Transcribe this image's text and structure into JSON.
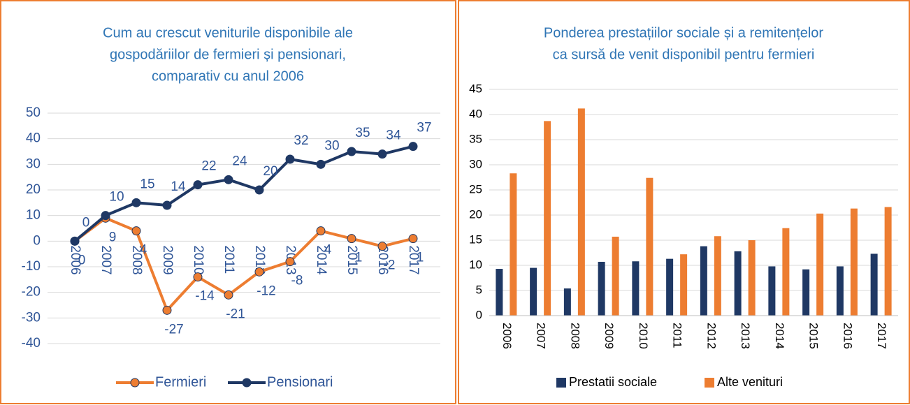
{
  "chart_data": [
    {
      "type": "line",
      "title": [
        "Cum au crescut veniturile disponibile ale",
        "gospodăriilor de fermieri și pensionari,",
        "comparativ cu anul 2006"
      ],
      "categories": [
        "2006",
        "2007",
        "2008",
        "2009",
        "2010",
        "2011",
        "2012",
        "2013",
        "2014",
        "2015",
        "2016",
        "2017"
      ],
      "series": [
        {
          "name": "Fermieri",
          "color": "#ed7d31",
          "values": [
            0,
            9,
            4,
            -27,
            -14,
            -21,
            -12,
            -8,
            4,
            1,
            -2,
            1
          ]
        },
        {
          "name": "Pensionari",
          "color": "#1f3864",
          "values": [
            0,
            10,
            15,
            14,
            22,
            24,
            20,
            32,
            30,
            35,
            34,
            37
          ]
        }
      ],
      "ylim": [
        -40,
        50
      ],
      "yticks": [
        -40,
        -30,
        -20,
        -10,
        0,
        10,
        20,
        30,
        40,
        50
      ],
      "grid": true,
      "legend": "bottom"
    },
    {
      "type": "bar",
      "title": [
        "Ponderea prestațiilor sociale și a remitențelor",
        "ca sursă de venit disponibil pentru fermieri"
      ],
      "categories": [
        "2006",
        "2007",
        "2008",
        "2009",
        "2010",
        "2011",
        "2012",
        "2013",
        "2014",
        "2015",
        "2016",
        "2017"
      ],
      "series": [
        {
          "name": "Prestatii sociale",
          "color": "#1f3864",
          "values": [
            9.3,
            9.5,
            5.4,
            10.7,
            10.8,
            11.3,
            13.8,
            12.8,
            9.8,
            9.2,
            9.8,
            12.3
          ]
        },
        {
          "name": "Alte venituri",
          "color": "#ed7d31",
          "values": [
            28.3,
            38.7,
            41.2,
            15.7,
            27.4,
            12.2,
            15.8,
            15,
            17.4,
            20.3,
            21.3,
            21.6
          ]
        }
      ],
      "ylim": [
        0,
        45
      ],
      "yticks": [
        0,
        5,
        10,
        15,
        20,
        25,
        30,
        35,
        40,
        45
      ],
      "grid": true,
      "legend": "bottom"
    }
  ]
}
